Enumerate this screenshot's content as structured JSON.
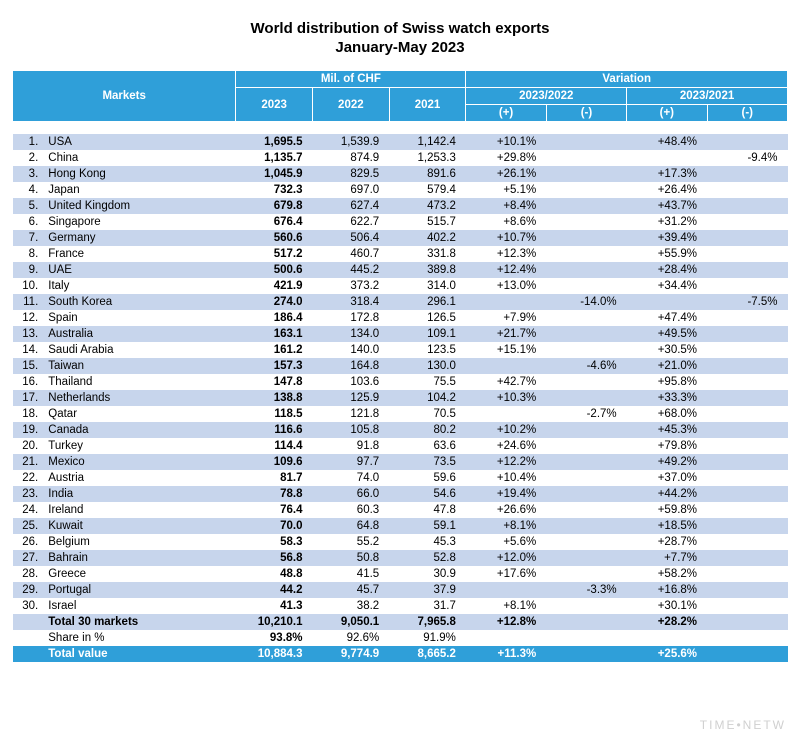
{
  "title": "World distribution of Swiss watch exports",
  "subtitle": "January-May 2023",
  "colors": {
    "header_bg": "#2f9fd9",
    "header_fg": "#ffffff",
    "row_alt_bg": "#c7d5ec",
    "body_bg": "#ffffff",
    "text": "#000000"
  },
  "header": {
    "markets": "Markets",
    "mil_chf": "Mil. of CHF",
    "variation": "Variation",
    "y2023": "2023",
    "y2022": "2022",
    "y2021": "2021",
    "v2023_2022": "2023/2022",
    "v2023_2021": "2023/2021",
    "plus": "(+)",
    "minus": "(-)"
  },
  "rows": [
    {
      "rank": "1.",
      "market": "USA",
      "v2023": "1,695.5",
      "v2022": "1,539.9",
      "v2021": "1,142.4",
      "d22p": "+10.1%",
      "d22n": "",
      "d21p": "+48.4%",
      "d21n": ""
    },
    {
      "rank": "2.",
      "market": "China",
      "v2023": "1,135.7",
      "v2022": "874.9",
      "v2021": "1,253.3",
      "d22p": "+29.8%",
      "d22n": "",
      "d21p": "",
      "d21n": "-9.4%"
    },
    {
      "rank": "3.",
      "market": "Hong Kong",
      "v2023": "1,045.9",
      "v2022": "829.5",
      "v2021": "891.6",
      "d22p": "+26.1%",
      "d22n": "",
      "d21p": "+17.3%",
      "d21n": ""
    },
    {
      "rank": "4.",
      "market": "Japan",
      "v2023": "732.3",
      "v2022": "697.0",
      "v2021": "579.4",
      "d22p": "+5.1%",
      "d22n": "",
      "d21p": "+26.4%",
      "d21n": ""
    },
    {
      "rank": "5.",
      "market": "United Kingdom",
      "v2023": "679.8",
      "v2022": "627.4",
      "v2021": "473.2",
      "d22p": "+8.4%",
      "d22n": "",
      "d21p": "+43.7%",
      "d21n": ""
    },
    {
      "rank": "6.",
      "market": "Singapore",
      "v2023": "676.4",
      "v2022": "622.7",
      "v2021": "515.7",
      "d22p": "+8.6%",
      "d22n": "",
      "d21p": "+31.2%",
      "d21n": ""
    },
    {
      "rank": "7.",
      "market": "Germany",
      "v2023": "560.6",
      "v2022": "506.4",
      "v2021": "402.2",
      "d22p": "+10.7%",
      "d22n": "",
      "d21p": "+39.4%",
      "d21n": ""
    },
    {
      "rank": "8.",
      "market": "France",
      "v2023": "517.2",
      "v2022": "460.7",
      "v2021": "331.8",
      "d22p": "+12.3%",
      "d22n": "",
      "d21p": "+55.9%",
      "d21n": ""
    },
    {
      "rank": "9.",
      "market": "UAE",
      "v2023": "500.6",
      "v2022": "445.2",
      "v2021": "389.8",
      "d22p": "+12.4%",
      "d22n": "",
      "d21p": "+28.4%",
      "d21n": ""
    },
    {
      "rank": "10.",
      "market": "Italy",
      "v2023": "421.9",
      "v2022": "373.2",
      "v2021": "314.0",
      "d22p": "+13.0%",
      "d22n": "",
      "d21p": "+34.4%",
      "d21n": ""
    },
    {
      "rank": "11.",
      "market": "South Korea",
      "v2023": "274.0",
      "v2022": "318.4",
      "v2021": "296.1",
      "d22p": "",
      "d22n": "-14.0%",
      "d21p": "",
      "d21n": "-7.5%"
    },
    {
      "rank": "12.",
      "market": "Spain",
      "v2023": "186.4",
      "v2022": "172.8",
      "v2021": "126.5",
      "d22p": "+7.9%",
      "d22n": "",
      "d21p": "+47.4%",
      "d21n": ""
    },
    {
      "rank": "13.",
      "market": "Australia",
      "v2023": "163.1",
      "v2022": "134.0",
      "v2021": "109.1",
      "d22p": "+21.7%",
      "d22n": "",
      "d21p": "+49.5%",
      "d21n": ""
    },
    {
      "rank": "14.",
      "market": "Saudi Arabia",
      "v2023": "161.2",
      "v2022": "140.0",
      "v2021": "123.5",
      "d22p": "+15.1%",
      "d22n": "",
      "d21p": "+30.5%",
      "d21n": ""
    },
    {
      "rank": "15.",
      "market": "Taiwan",
      "v2023": "157.3",
      "v2022": "164.8",
      "v2021": "130.0",
      "d22p": "",
      "d22n": "-4.6%",
      "d21p": "+21.0%",
      "d21n": ""
    },
    {
      "rank": "16.",
      "market": "Thailand",
      "v2023": "147.8",
      "v2022": "103.6",
      "v2021": "75.5",
      "d22p": "+42.7%",
      "d22n": "",
      "d21p": "+95.8%",
      "d21n": ""
    },
    {
      "rank": "17.",
      "market": "Netherlands",
      "v2023": "138.8",
      "v2022": "125.9",
      "v2021": "104.2",
      "d22p": "+10.3%",
      "d22n": "",
      "d21p": "+33.3%",
      "d21n": ""
    },
    {
      "rank": "18.",
      "market": "Qatar",
      "v2023": "118.5",
      "v2022": "121.8",
      "v2021": "70.5",
      "d22p": "",
      "d22n": "-2.7%",
      "d21p": "+68.0%",
      "d21n": ""
    },
    {
      "rank": "19.",
      "market": "Canada",
      "v2023": "116.6",
      "v2022": "105.8",
      "v2021": "80.2",
      "d22p": "+10.2%",
      "d22n": "",
      "d21p": "+45.3%",
      "d21n": ""
    },
    {
      "rank": "20.",
      "market": "Turkey",
      "v2023": "114.4",
      "v2022": "91.8",
      "v2021": "63.6",
      "d22p": "+24.6%",
      "d22n": "",
      "d21p": "+79.8%",
      "d21n": ""
    },
    {
      "rank": "21.",
      "market": "Mexico",
      "v2023": "109.6",
      "v2022": "97.7",
      "v2021": "73.5",
      "d22p": "+12.2%",
      "d22n": "",
      "d21p": "+49.2%",
      "d21n": ""
    },
    {
      "rank": "22.",
      "market": "Austria",
      "v2023": "81.7",
      "v2022": "74.0",
      "v2021": "59.6",
      "d22p": "+10.4%",
      "d22n": "",
      "d21p": "+37.0%",
      "d21n": ""
    },
    {
      "rank": "23.",
      "market": "India",
      "v2023": "78.8",
      "v2022": "66.0",
      "v2021": "54.6",
      "d22p": "+19.4%",
      "d22n": "",
      "d21p": "+44.2%",
      "d21n": ""
    },
    {
      "rank": "24.",
      "market": "Ireland",
      "v2023": "76.4",
      "v2022": "60.3",
      "v2021": "47.8",
      "d22p": "+26.6%",
      "d22n": "",
      "d21p": "+59.8%",
      "d21n": ""
    },
    {
      "rank": "25.",
      "market": "Kuwait",
      "v2023": "70.0",
      "v2022": "64.8",
      "v2021": "59.1",
      "d22p": "+8.1%",
      "d22n": "",
      "d21p": "+18.5%",
      "d21n": ""
    },
    {
      "rank": "26.",
      "market": "Belgium",
      "v2023": "58.3",
      "v2022": "55.2",
      "v2021": "45.3",
      "d22p": "+5.6%",
      "d22n": "",
      "d21p": "+28.7%",
      "d21n": ""
    },
    {
      "rank": "27.",
      "market": "Bahrain",
      "v2023": "56.8",
      "v2022": "50.8",
      "v2021": "52.8",
      "d22p": "+12.0%",
      "d22n": "",
      "d21p": "+7.7%",
      "d21n": ""
    },
    {
      "rank": "28.",
      "market": "Greece",
      "v2023": "48.8",
      "v2022": "41.5",
      "v2021": "30.9",
      "d22p": "+17.6%",
      "d22n": "",
      "d21p": "+58.2%",
      "d21n": ""
    },
    {
      "rank": "29.",
      "market": "Portugal",
      "v2023": "44.2",
      "v2022": "45.7",
      "v2021": "37.9",
      "d22p": "",
      "d22n": "-3.3%",
      "d21p": "+16.8%",
      "d21n": ""
    },
    {
      "rank": "30.",
      "market": "Israel",
      "v2023": "41.3",
      "v2022": "38.2",
      "v2021": "31.7",
      "d22p": "+8.1%",
      "d22n": "",
      "d21p": "+30.1%",
      "d21n": ""
    }
  ],
  "total30": {
    "label": "Total 30 markets",
    "v2023": "10,210.1",
    "v2022": "9,050.1",
    "v2021": "7,965.8",
    "d22p": "+12.8%",
    "d22n": "",
    "d21p": "+28.2%",
    "d21n": ""
  },
  "share": {
    "label": "Share in %",
    "v2023": "93.8%",
    "v2022": "92.6%",
    "v2021": "91.9%",
    "d22p": "",
    "d22n": "",
    "d21p": "",
    "d21n": ""
  },
  "totalval": {
    "label": "Total value",
    "v2023": "10,884.3",
    "v2022": "9,774.9",
    "v2021": "8,665.2",
    "d22p": "+11.3%",
    "d22n": "",
    "d21p": "+25.6%",
    "d21n": ""
  },
  "watermark": "TIME•NETW"
}
